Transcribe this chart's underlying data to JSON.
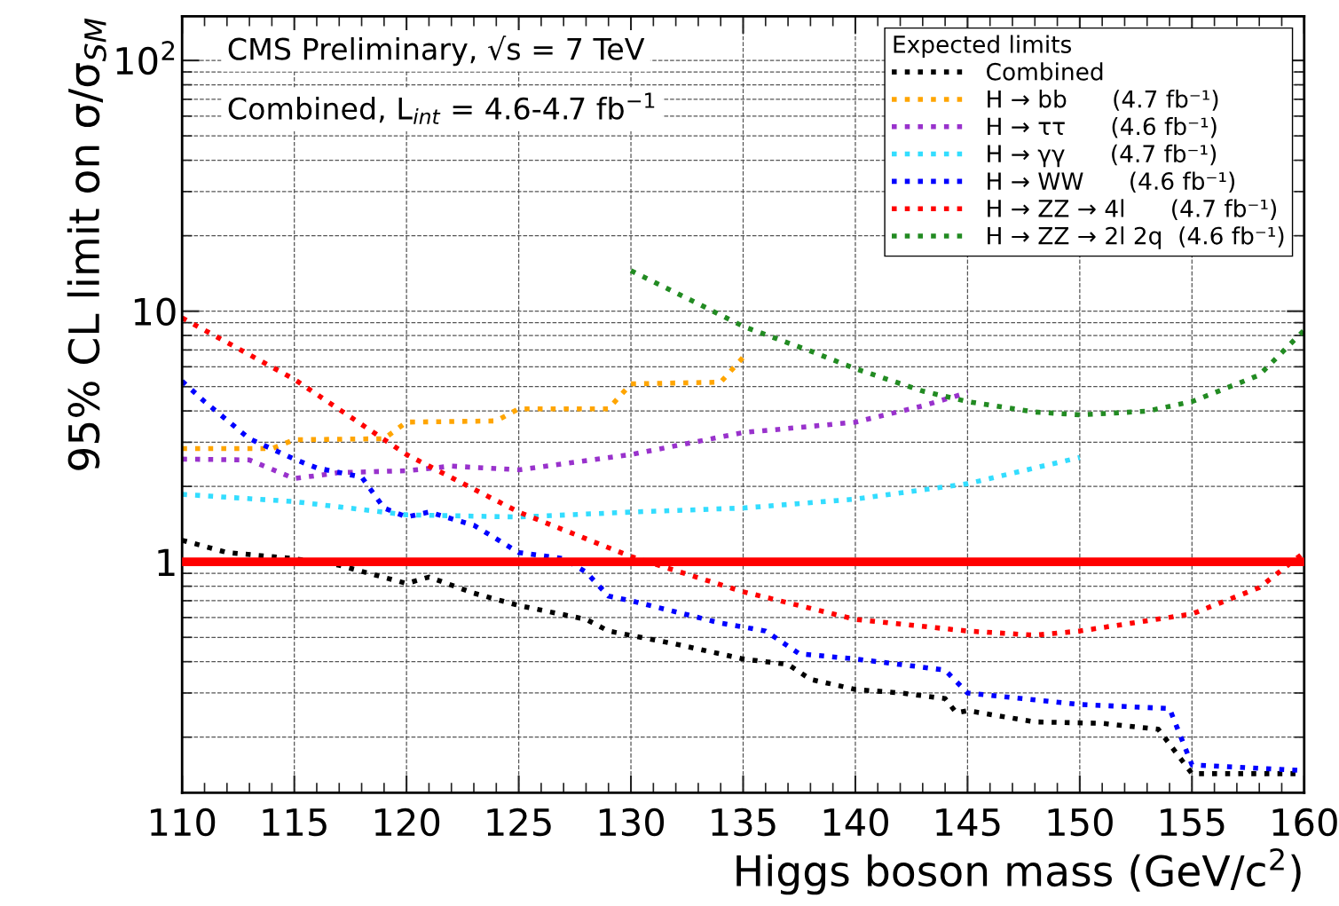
{
  "chart_data": {
    "type": "line",
    "xlabel": "Higgs boson mass (GeV/c$^{2}$)",
    "ylabel": "95% CL limit on σ/σ$_{SM}$",
    "legend_title": "Expected limits",
    "annotations": [
      "CMS Preliminary, √s = 7 TeV",
      "Combined, L$_{int}$ = 4.6-4.7 fb$^{−1}$"
    ],
    "log": "y",
    "xlim": [
      110,
      160
    ],
    "ylim": [
      0.12,
      150
    ],
    "xticks": [
      110,
      115,
      120,
      125,
      130,
      135,
      140,
      145,
      150,
      155,
      160
    ],
    "yticks": [
      1,
      10,
      {
        "value": 100,
        "label": "10$^{2}$"
      }
    ],
    "grid": true,
    "legend": "top right",
    "marker": "none",
    "line_style": "dotted",
    "ref_lines": [
      {
        "axis": "y",
        "value": 1,
        "label": null,
        "color": "#ff0000",
        "line_style": "solid"
      }
    ],
    "series": [
      {
        "name": "Combined",
        "color": "#000000",
        "x": [
          110,
          112,
          115,
          117,
          120,
          121,
          123,
          125,
          128,
          129,
          132,
          135,
          137,
          138,
          140,
          142,
          144,
          144.5,
          145,
          148,
          151,
          153.5,
          155,
          160
        ],
        "values": [
          1.22,
          1.09,
          1.03,
          0.97,
          0.82,
          0.87,
          0.75,
          0.67,
          0.59,
          0.53,
          0.47,
          0.41,
          0.39,
          0.34,
          0.31,
          0.3,
          0.285,
          0.25,
          0.255,
          0.23,
          0.227,
          0.215,
          0.143,
          0.143
        ]
      },
      {
        "name": "H → bb      (4.7 fb⁻¹)",
        "color": "#ffa500",
        "x": [
          110,
          114,
          115,
          119,
          120,
          124,
          125,
          129,
          130,
          134,
          135
        ],
        "values": [
          2.83,
          2.83,
          3.07,
          3.1,
          3.61,
          3.65,
          4.08,
          4.08,
          5.13,
          5.21,
          6.55
        ]
      },
      {
        "name": "H → ττ      (4.6 fb⁻¹)",
        "color": "#9932cc",
        "x": [
          110,
          113,
          115,
          117,
          120,
          122,
          125,
          130,
          135,
          138,
          140,
          143,
          145
        ],
        "values": [
          2.57,
          2.55,
          2.15,
          2.27,
          2.31,
          2.41,
          2.33,
          2.68,
          3.28,
          3.47,
          3.61,
          4.19,
          4.73
        ]
      },
      {
        "name": "H → γγ      (4.7 fb⁻¹)",
        "color": "#33ddff",
        "x": [
          110,
          115,
          120,
          125,
          130,
          135,
          140,
          145,
          150
        ],
        "values": [
          1.86,
          1.74,
          1.54,
          1.51,
          1.58,
          1.64,
          1.78,
          2.05,
          2.61
        ]
      },
      {
        "name": "H → WW      (4.6 fb⁻¹)",
        "color": "#0000ff",
        "x": [
          110,
          111,
          113,
          115,
          116,
          118,
          119,
          120,
          121,
          123,
          125,
          127,
          128,
          129,
          130,
          134,
          136,
          137.5,
          140,
          143,
          144,
          145,
          150,
          154,
          155,
          160
        ],
        "values": [
          5.26,
          4.36,
          3.1,
          2.57,
          2.37,
          2.18,
          1.64,
          1.51,
          1.58,
          1.4,
          1.09,
          1.03,
          0.91,
          0.73,
          0.7,
          0.57,
          0.53,
          0.43,
          0.41,
          0.38,
          0.37,
          0.3,
          0.27,
          0.26,
          0.155,
          0.147
        ]
      },
      {
        "name": "H → ZZ → 4l      (4.7 fb⁻¹)",
        "color": "#ff0000",
        "x": [
          110,
          115,
          120,
          125,
          130,
          135,
          140,
          145,
          148,
          150,
          155,
          158,
          160
        ],
        "values": [
          9.4,
          5.35,
          2.68,
          1.58,
          1.05,
          0.76,
          0.59,
          0.53,
          0.51,
          0.53,
          0.62,
          0.79,
          1.09
        ]
      },
      {
        "name": "H → ZZ → 2l 2q  (4.6 fb⁻¹)",
        "color": "#228b22",
        "x": [
          130,
          133,
          135,
          138,
          140,
          143,
          145,
          148,
          150,
          153,
          155,
          158,
          160
        ],
        "values": [
          14.5,
          10.7,
          8.7,
          6.93,
          5.9,
          4.8,
          4.36,
          3.96,
          3.86,
          3.99,
          4.36,
          5.56,
          8.4
        ]
      }
    ]
  }
}
